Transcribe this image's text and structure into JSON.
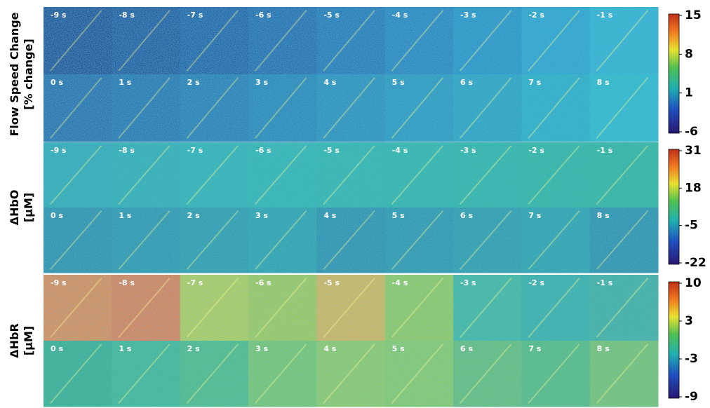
{
  "panels": [
    {
      "label": [
        "Flow Speed Change",
        "[% change]"
      ],
      "rows": [
        [
          "-9 s",
          "-8 s",
          "-7 s",
          "-6 s",
          "-5 s",
          "-4 s",
          "-3 s",
          "-2 s",
          "-1 s"
        ],
        [
          "0 s",
          "1 s",
          "2 s",
          "3 s",
          "4 s",
          "5 s",
          "6 s",
          "7 s",
          "8 s"
        ]
      ],
      "colorbar_ticks": [
        "15",
        "8",
        "1",
        "-6"
      ]
    },
    {
      "label": [
        "ΔHbO",
        "[μM]"
      ],
      "rows": [
        [
          "-9 s",
          "-8 s",
          "-7 s",
          "-6 s",
          "-5 s",
          "-4 s",
          "-3 s",
          "-2 s",
          "-1 s"
        ],
        [
          "0 s",
          "1 s",
          "2 s",
          "3 s",
          "4 s",
          "5 s",
          "6 s",
          "7 s",
          "8 s"
        ]
      ],
      "colorbar_ticks": [
        "31",
        "18",
        "-5",
        "-22"
      ]
    },
    {
      "label": [
        "ΔHbR",
        "[μM]"
      ],
      "rows": [
        [
          "-9 s",
          "-8 s",
          "-7 s",
          "-6 s",
          "-5 s",
          "-4 s",
          "-3 s",
          "-2 s",
          "-1 s"
        ],
        [
          "0 s",
          "1 s",
          "2 s",
          "3 s",
          "4 s",
          "5 s",
          "6 s",
          "7 s",
          "8 s"
        ]
      ],
      "colorbar_ticks": [
        "10",
        "3",
        "-3",
        "-9"
      ]
    }
  ]
}
